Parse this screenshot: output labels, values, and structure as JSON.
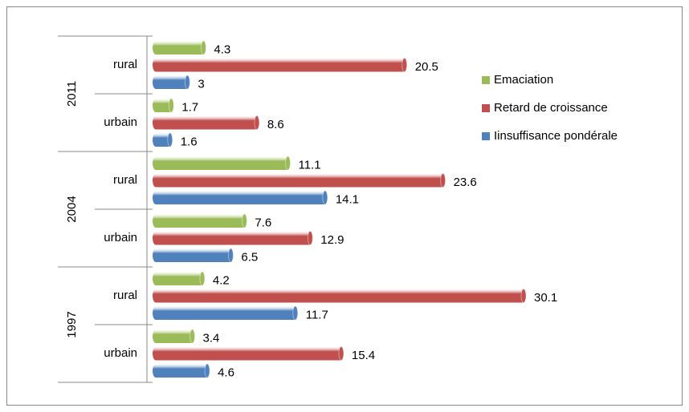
{
  "chart_data": {
    "type": "bar",
    "orientation": "horizontal",
    "groups": [
      {
        "label": "2011",
        "categories": [
          "rural",
          "urbain"
        ]
      },
      {
        "label": "2004",
        "categories": [
          "rural",
          "urbain"
        ]
      },
      {
        "label": "1997",
        "categories": [
          "rural",
          "urbain"
        ]
      }
    ],
    "series": [
      {
        "name": "Emaciation",
        "color": "#9bbb59",
        "label_color": "#4f6228",
        "values": [
          4.3,
          1.7,
          11.1,
          7.6,
          4.2,
          3.4
        ]
      },
      {
        "name": "Retard de croissance",
        "color": "#c0504d",
        "label_color": "#c0504d",
        "values": [
          20.5,
          8.6,
          23.6,
          12.9,
          30.1,
          15.4
        ]
      },
      {
        "name": "Iinsuffisance pondérale",
        "color": "#4f81bd",
        "label_color": "#1f497d",
        "values": [
          3,
          1.6,
          14.1,
          6.5,
          11.7,
          4.6
        ]
      }
    ],
    "legend": "right"
  }
}
